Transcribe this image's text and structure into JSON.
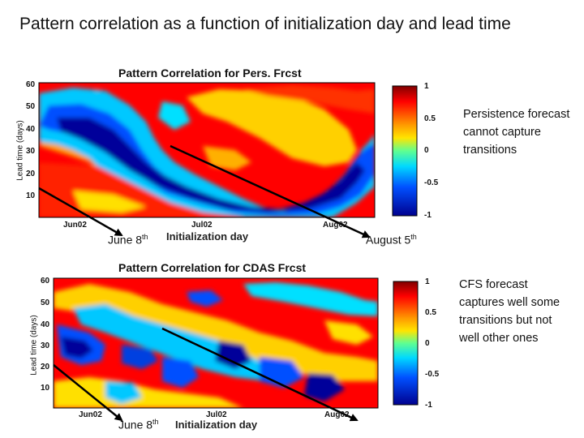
{
  "slide_title": "Pattern correlation as a function of initialization day and lead time",
  "notes": {
    "top": "Persistence forecast cannot capture transitions",
    "bottom": "CFS forecast captures well some transitions but not well other ones"
  },
  "annotations": {
    "june_top": {
      "text": "June 8",
      "sup": "th"
    },
    "august_top": {
      "text": "August 5",
      "sup": "th"
    },
    "june_bottom": {
      "text": "June 8",
      "sup": "th"
    }
  },
  "colors": {
    "dark_blue": "#00008f",
    "blue": "#0050ff",
    "cyan": "#00d8ff",
    "yellow": "#ffe400",
    "orange": "#ff8c00",
    "red": "#ff0000",
    "dark_red": "#800000"
  },
  "chart_data": [
    {
      "type": "heatmap",
      "title": "Pattern Correlation for Pers. Frcst",
      "xlabel": "Initialization day",
      "ylabel": "Lead time (days)",
      "xticks": [
        "Jun02",
        "Jul02",
        "Aug02"
      ],
      "yticks": [
        10,
        20,
        30,
        40,
        50,
        60
      ],
      "ylim": [
        5,
        60
      ],
      "colorbar": {
        "min": -1,
        "max": 1,
        "ticks": [
          1,
          0.5,
          0,
          -0.5,
          -1
        ]
      },
      "grid": false
    },
    {
      "type": "heatmap",
      "title": "Pattern Correlation for CDAS Frcst",
      "xlabel": "Initialization day",
      "ylabel": "Lead time (days)",
      "xticks": [
        "Jun02",
        "Jul02",
        "Aug02"
      ],
      "yticks": [
        10,
        20,
        30,
        40,
        50,
        60
      ],
      "ylim": [
        5,
        60
      ],
      "colorbar": {
        "min": -1,
        "max": 1,
        "ticks": [
          1,
          0.5,
          0,
          -0.5,
          -1
        ]
      },
      "grid": false
    }
  ]
}
